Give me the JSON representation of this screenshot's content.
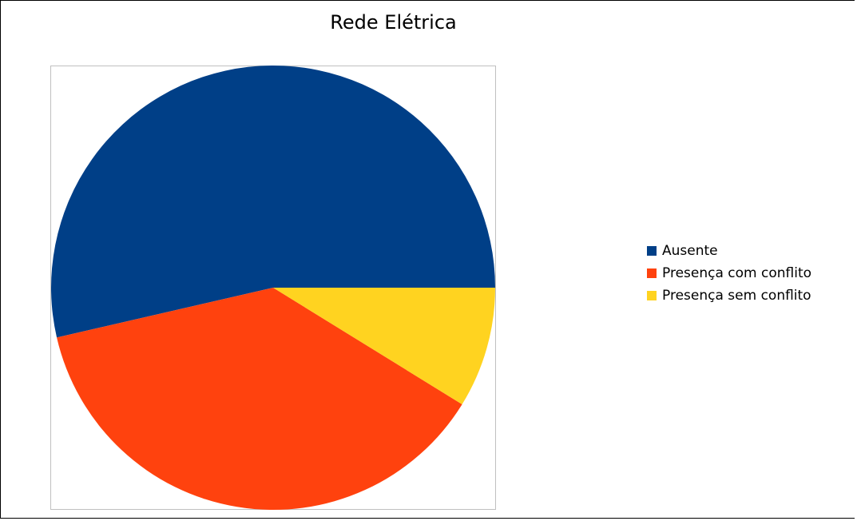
{
  "chart_data": {
    "type": "pie",
    "title": "Rede Elétrica",
    "categories": [
      "Ausente",
      "Presença com conflito",
      "Presença sem conflito"
    ],
    "values": [
      53.6,
      37.6,
      8.8
    ],
    "colors": [
      "#003F87",
      "#FF420E",
      "#FFD320"
    ],
    "legend_position": "right",
    "start_angle": "3 o'clock",
    "direction": "counterclockwise"
  }
}
